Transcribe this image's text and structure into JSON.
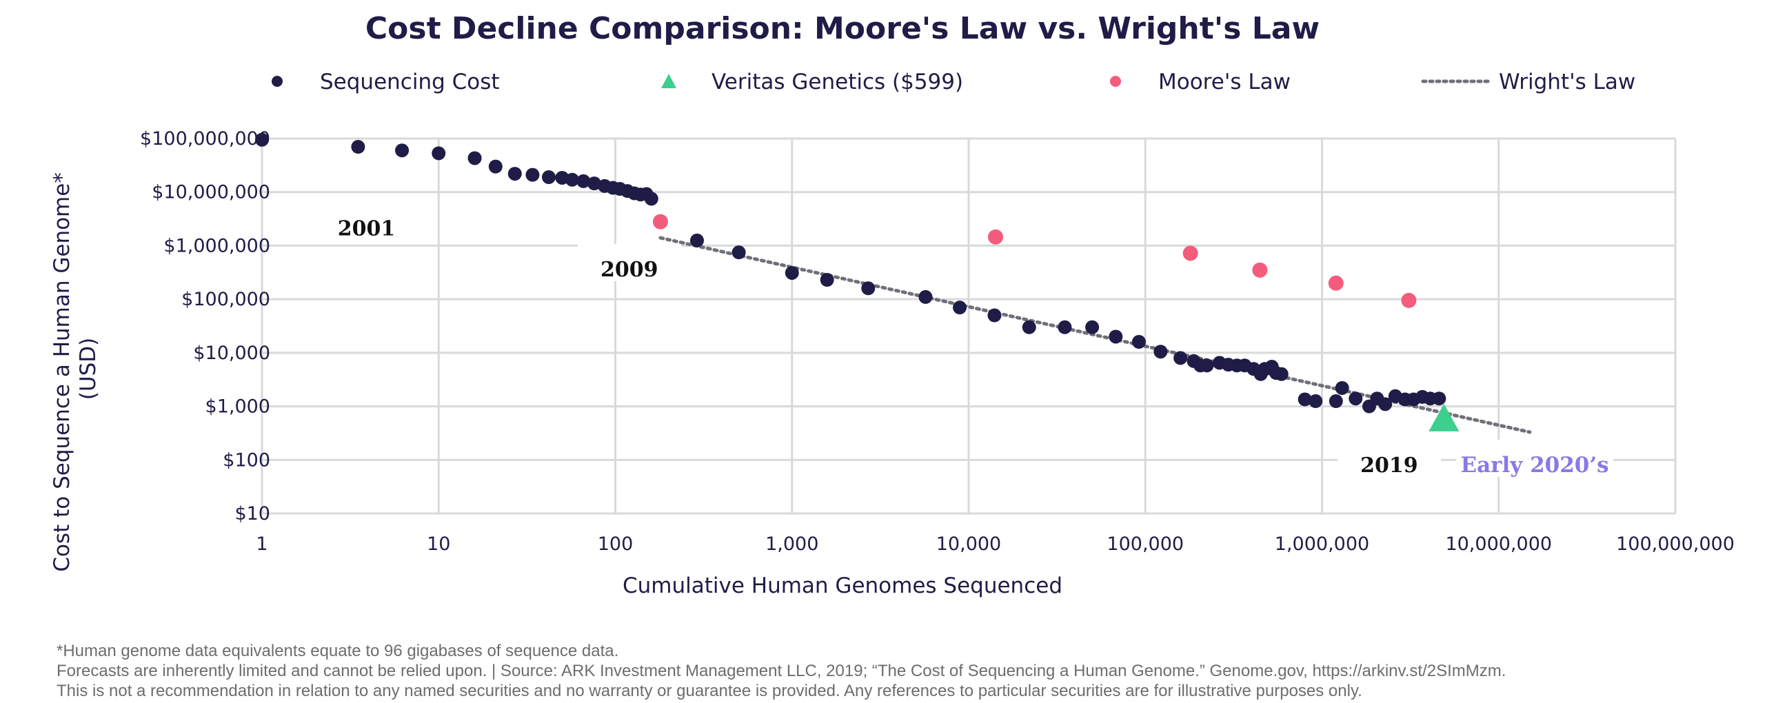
{
  "chart_data": {
    "type": "scatter",
    "title": "Cost Decline Comparison: Moore's Law vs. Wright's Law",
    "xlabel": "Cumulative Human Genomes Sequenced",
    "ylabel_lines": [
      "Cost to Sequence a Human Genome*",
      "(USD)"
    ],
    "x_scale": "log",
    "y_scale": "log",
    "xlim": [
      1,
      100000000
    ],
    "ylim": [
      10,
      100000000
    ],
    "x_ticks": [
      1,
      10,
      100,
      1000,
      10000,
      100000,
      1000000,
      10000000,
      100000000
    ],
    "x_tick_labels": [
      "1",
      "10",
      "100",
      "1,000",
      "10,000",
      "100,000",
      "1,000,000",
      "10,000,000",
      "100,000,000"
    ],
    "y_ticks": [
      10,
      100,
      1000,
      10000,
      100000,
      1000000,
      10000000,
      100000000
    ],
    "y_tick_labels": [
      "$10",
      "$100",
      "$1,000",
      "$10,000",
      "$100,000",
      "$1,000,000",
      "$10,000,000",
      "$100,000,000"
    ],
    "grid": true,
    "legend_position": "top",
    "legend": [
      {
        "label": "Sequencing Cost",
        "marker": "circle",
        "color": "#1f1d47"
      },
      {
        "label": "Veritas Genetics ($599)",
        "marker": "triangle",
        "color": "#3ecf8e"
      },
      {
        "label": "Moore's Law",
        "marker": "circle",
        "color": "#f35c7c"
      },
      {
        "label": "Wright's Law",
        "marker": "dotted-line",
        "color": "#70707a"
      }
    ],
    "series": [
      {
        "name": "Sequencing Cost",
        "color": "#1f1d47",
        "points": [
          [
            1,
            95000000
          ],
          [
            3.5,
            70000000
          ],
          [
            6.2,
            60000000
          ],
          [
            10,
            53000000
          ],
          [
            16,
            43000000
          ],
          [
            21,
            30000000
          ],
          [
            27,
            22000000
          ],
          [
            34,
            21000000
          ],
          [
            42,
            19000000
          ],
          [
            50,
            18500000
          ],
          [
            57,
            17000000
          ],
          [
            66,
            16000000
          ],
          [
            76,
            14500000
          ],
          [
            87,
            13000000
          ],
          [
            97,
            12000000
          ],
          [
            106,
            11500000
          ],
          [
            117,
            10500000
          ],
          [
            128,
            9500000
          ],
          [
            139,
            9000000
          ],
          [
            150,
            9200000
          ],
          [
            160,
            7500000
          ],
          [
            290,
            1250000
          ],
          [
            500,
            750000
          ],
          [
            1000,
            310000
          ],
          [
            1580,
            230000
          ],
          [
            2700,
            160000
          ],
          [
            5700,
            110000
          ],
          [
            8900,
            70000
          ],
          [
            14000,
            50000
          ],
          [
            22000,
            30000
          ],
          [
            35000,
            30000
          ],
          [
            50000,
            30000
          ],
          [
            68000,
            20000
          ],
          [
            92000,
            16000
          ],
          [
            122000,
            10500
          ],
          [
            158000,
            8000
          ],
          [
            188000,
            7000
          ],
          [
            205000,
            5800
          ],
          [
            223000,
            5800
          ],
          [
            263000,
            6500
          ],
          [
            295000,
            6000
          ],
          [
            330000,
            5800
          ],
          [
            365000,
            5800
          ],
          [
            410000,
            5000
          ],
          [
            450000,
            4000
          ],
          [
            475000,
            5000
          ],
          [
            520000,
            5500
          ],
          [
            550000,
            4200
          ],
          [
            590000,
            4000
          ],
          [
            800000,
            1350
          ],
          [
            920000,
            1250
          ],
          [
            1200000,
            1250
          ],
          [
            1300000,
            2200
          ],
          [
            1550000,
            1400
          ],
          [
            1850000,
            1000
          ],
          [
            2050000,
            1400
          ],
          [
            2280000,
            1100
          ],
          [
            2600000,
            1550
          ],
          [
            2950000,
            1350
          ],
          [
            3300000,
            1350
          ],
          [
            3700000,
            1500
          ],
          [
            4100000,
            1400
          ],
          [
            4600000,
            1400
          ]
        ]
      },
      {
        "name": "Veritas Genetics ($599)",
        "color": "#3ecf8e",
        "points": [
          [
            4900000,
            599
          ]
        ]
      },
      {
        "name": "Moore's Law",
        "color": "#f35c7c",
        "points": [
          [
            180,
            2800000
          ],
          [
            14200,
            1450000
          ],
          [
            180000,
            720000
          ],
          [
            445000,
            350000
          ],
          [
            1200000,
            200000
          ],
          [
            3100000,
            95000
          ]
        ]
      },
      {
        "name": "Wright's Law",
        "color": "#70707a",
        "style": "dotted-line",
        "points": [
          [
            180,
            1400000
          ],
          [
            15000000,
            330
          ]
        ]
      }
    ],
    "annotations": [
      {
        "text": "2001",
        "x": 3.9,
        "y": 2100000,
        "style": "year"
      },
      {
        "text": "2009",
        "x": 120,
        "y": 360000,
        "style": "year"
      },
      {
        "text": "2019",
        "x": 2400000,
        "y": 80,
        "style": "year"
      },
      {
        "text": "Early 2020’s",
        "x": 16000000,
        "y": 80,
        "style": "future"
      }
    ]
  },
  "footnotes": [
    "*Human genome data equivalents equate to 96 gigabases of sequence data.",
    "Forecasts are inherently limited and cannot be relied upon.  |  Source: ARK Investment Management LLC, 2019; “The Cost of Sequencing a Human Genome.” Genome.gov, https://arkinv.st/2SImMzm.",
    "This is not a recommendation in relation to any named securities and no warranty or guarantee is provided. Any references to particular securities are for illustrative purposes only."
  ]
}
